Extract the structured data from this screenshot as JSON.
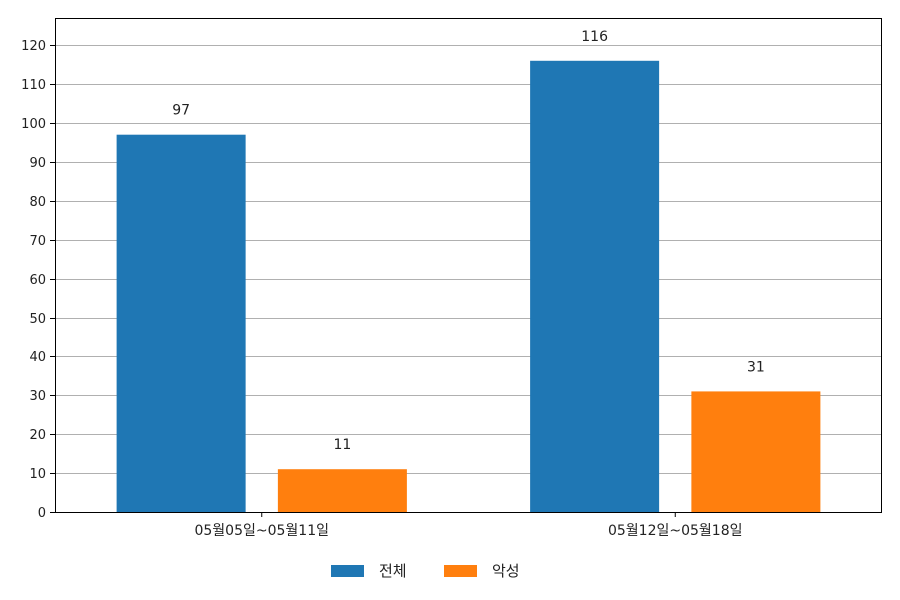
{
  "chart_data": {
    "type": "bar",
    "categories": [
      "05월05일~05월11일",
      "05월12일~05월18일"
    ],
    "series": [
      {
        "name": "전체",
        "values": [
          97,
          116
        ],
        "color": "#1f77b4"
      },
      {
        "name": "악성",
        "values": [
          11,
          31
        ],
        "color": "#ff7f0e"
      }
    ],
    "ylim": [
      0,
      127
    ],
    "yticks": [
      0,
      10,
      20,
      30,
      40,
      50,
      60,
      70,
      80,
      90,
      100,
      110,
      120
    ],
    "grid": true,
    "gridColor": "#b0b0b0",
    "data_labels": true,
    "legend": {
      "position": "bottom-center"
    },
    "title": "",
    "xlabel": "",
    "ylabel": ""
  }
}
